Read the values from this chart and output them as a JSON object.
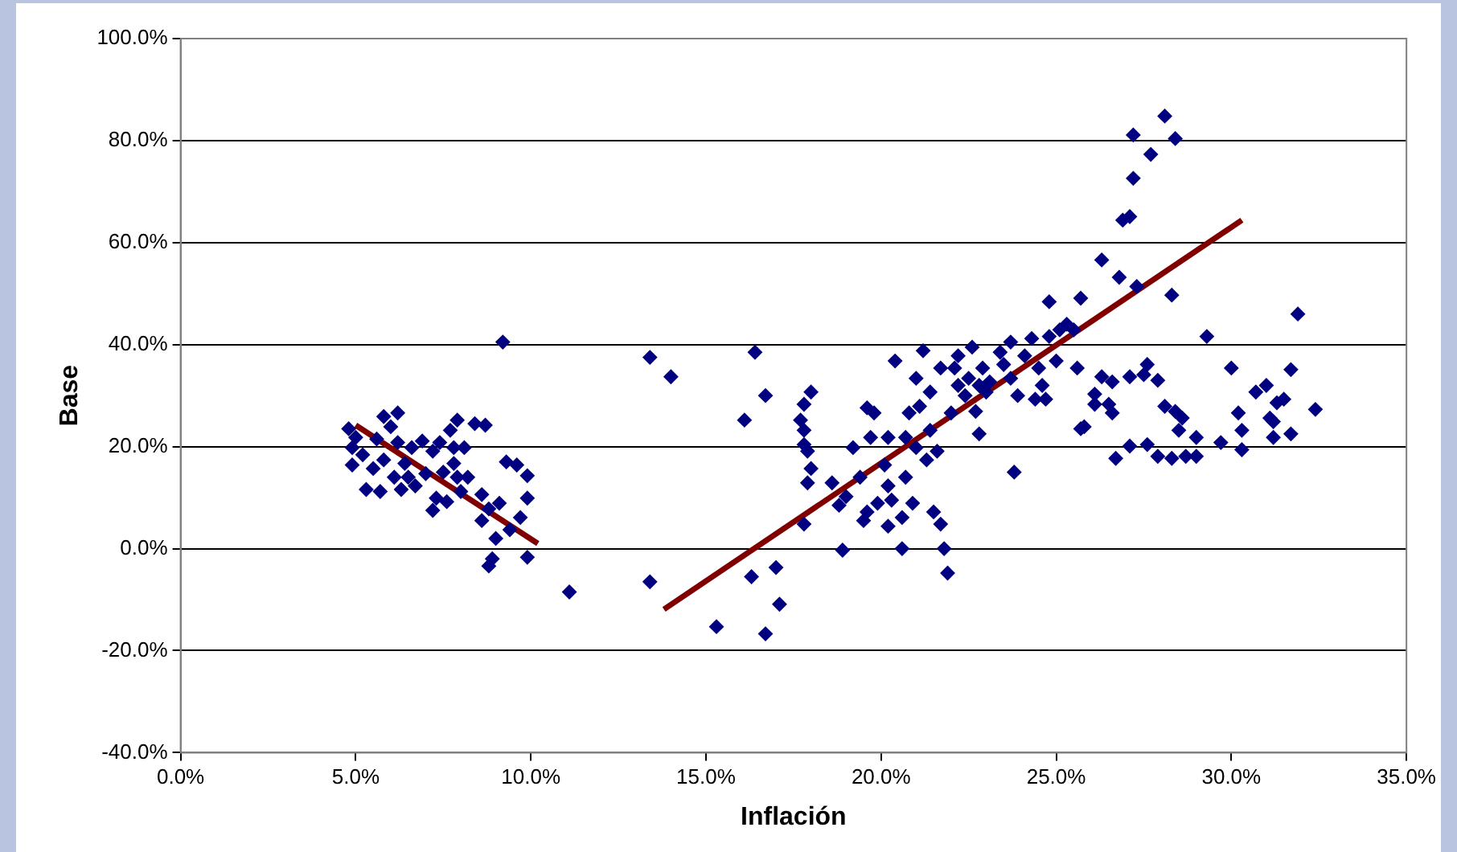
{
  "chart_data": {
    "type": "scatter",
    "xlabel": "Inflación",
    "ylabel": "Base",
    "xlim": [
      0,
      35
    ],
    "ylim": [
      -40,
      100
    ],
    "xticks": [
      {
        "value": 0,
        "label": "0.0%"
      },
      {
        "value": 5,
        "label": "5.0%"
      },
      {
        "value": 10,
        "label": "10.0%"
      },
      {
        "value": 15,
        "label": "15.0%"
      },
      {
        "value": 20,
        "label": "20.0%"
      },
      {
        "value": 25,
        "label": "25.0%"
      },
      {
        "value": 30,
        "label": "30.0%"
      },
      {
        "value": 35,
        "label": "35.0%"
      }
    ],
    "yticks": [
      {
        "value": -40,
        "label": "-40.0%"
      },
      {
        "value": -20,
        "label": "-20.0%"
      },
      {
        "value": 0,
        "label": "0.0%"
      },
      {
        "value": 20,
        "label": "20.0%"
      },
      {
        "value": 40,
        "label": "40.0%"
      },
      {
        "value": 60,
        "label": "60.0%"
      },
      {
        "value": 80,
        "label": "80.0%"
      },
      {
        "value": 100,
        "label": "100.0%"
      }
    ],
    "grid": "y",
    "legend": false,
    "series": [
      {
        "marker": "diamond",
        "color": "#000080",
        "x": [
          4.8,
          4.9,
          4.9,
          5.0,
          5.2,
          5.3,
          5.5,
          5.6,
          5.7,
          5.8,
          5.8,
          6.0,
          6.1,
          6.2,
          6.2,
          6.3,
          6.4,
          6.5,
          6.6,
          6.7,
          6.9,
          7.0,
          7.2,
          7.2,
          7.3,
          7.4,
          7.5,
          7.6,
          7.7,
          7.8,
          7.8,
          7.9,
          7.9,
          8.0,
          8.1,
          8.2,
          8.4,
          8.6,
          8.6,
          8.7,
          8.8,
          8.8,
          8.9,
          9.0,
          9.1,
          9.2,
          9.3,
          9.4,
          9.6,
          9.7,
          9.9,
          9.9,
          9.9,
          11.1,
          13.4,
          13.4,
          14.0,
          15.3,
          16.1,
          16.3,
          16.4,
          16.7,
          16.7,
          17.0,
          17.1,
          17.7,
          17.8,
          17.8,
          17.8,
          17.9,
          18.0,
          17.9,
          18.0,
          17.8,
          18.6,
          18.8,
          18.9,
          19.0,
          19.2,
          19.4,
          19.5,
          19.6,
          19.6,
          19.7,
          19.8,
          19.9,
          20.1,
          20.2,
          20.2,
          20.2,
          20.3,
          20.4,
          20.6,
          20.6,
          20.7,
          20.7,
          20.8,
          20.9,
          21.0,
          21.0,
          21.1,
          21.2,
          21.3,
          21.4,
          21.4,
          21.5,
          21.6,
          21.7,
          21.7,
          21.8,
          21.9,
          22.0,
          22.1,
          22.2,
          22.2,
          22.4,
          22.5,
          22.6,
          22.7,
          22.8,
          22.8,
          22.9,
          23.0,
          23.1,
          23.4,
          23.5,
          23.7,
          23.7,
          23.8,
          23.9,
          24.1,
          24.3,
          24.4,
          24.5,
          24.6,
          24.8,
          24.7,
          24.8,
          25.0,
          25.1,
          25.3,
          25.5,
          25.7,
          25.6,
          25.8,
          26.3,
          26.8,
          27.3,
          26.9,
          27.1,
          27.2,
          27.2,
          27.7,
          28.1,
          28.4,
          28.3,
          29.3,
          31.9,
          26.3,
          26.6,
          27.1,
          27.6,
          27.5,
          27.9,
          26.1,
          26.1,
          26.5,
          26.6,
          25.7,
          28.1,
          28.4,
          28.6,
          28.5,
          26.7,
          27.1,
          27.6,
          27.9,
          28.3,
          28.7,
          29.0,
          29.0,
          29.7,
          30.0,
          30.2,
          30.3,
          30.3,
          30.7,
          31.0,
          31.1,
          31.2,
          31.3,
          31.5,
          31.2,
          31.7,
          31.7,
          32.4
        ],
        "values": [
          23.5,
          19.8,
          16.4,
          21.8,
          18.4,
          11.6,
          15.7,
          21.5,
          11.2,
          25.9,
          17.4,
          23.9,
          14.0,
          26.6,
          20.8,
          11.6,
          16.7,
          14.0,
          19.8,
          12.3,
          21.1,
          14.7,
          19.1,
          7.5,
          9.9,
          20.8,
          15.0,
          9.2,
          23.2,
          19.8,
          16.7,
          14.0,
          25.2,
          11.2,
          19.8,
          14.0,
          24.5,
          10.6,
          5.5,
          24.2,
          7.8,
          -3.4,
          -2.0,
          2.0,
          8.9,
          40.5,
          17.0,
          3.7,
          16.4,
          6.1,
          9.9,
          14.3,
          -1.7,
          -8.5,
          -6.5,
          37.5,
          33.7,
          -15.3,
          25.2,
          -5.5,
          38.5,
          -16.7,
          30.0,
          -3.7,
          -10.9,
          25.2,
          28.3,
          23.2,
          20.4,
          19.1,
          30.7,
          12.9,
          15.7,
          4.8,
          12.9,
          8.5,
          -0.3,
          10.2,
          19.8,
          14.0,
          5.5,
          27.6,
          7.2,
          21.8,
          26.6,
          8.9,
          16.4,
          21.8,
          12.3,
          4.4,
          9.5,
          36.8,
          0.0,
          6.1,
          14.0,
          21.8,
          26.6,
          8.9,
          33.4,
          19.8,
          27.9,
          38.8,
          17.4,
          23.2,
          30.7,
          7.2,
          19.1,
          35.4,
          4.8,
          0.0,
          -4.8,
          26.6,
          35.4,
          32.0,
          37.8,
          30.0,
          33.4,
          39.5,
          26.9,
          32.0,
          22.5,
          35.4,
          30.7,
          32.7,
          38.5,
          36.1,
          33.4,
          40.5,
          15.0,
          30.0,
          37.8,
          41.2,
          29.3,
          35.4,
          32.0,
          41.6,
          29.3,
          48.4,
          36.8,
          42.9,
          44.0,
          42.9,
          49.1,
          35.4,
          23.9,
          56.6,
          53.2,
          51.4,
          64.4,
          65.1,
          72.6,
          81.1,
          77.3,
          84.8,
          80.4,
          49.7,
          41.6,
          46.0,
          33.7,
          32.7,
          33.7,
          36.1,
          34.1,
          33.0,
          30.3,
          28.3,
          28.3,
          26.6,
          23.5,
          27.9,
          26.9,
          25.6,
          23.2,
          17.7,
          20.1,
          20.4,
          18.1,
          17.7,
          18.1,
          21.8,
          18.1,
          20.8,
          35.4,
          26.6,
          23.2,
          19.4,
          30.7,
          32.0,
          25.6,
          24.9,
          28.6,
          29.3,
          21.8,
          22.5,
          35.1,
          27.3
        ]
      },
      {
        "type": "line",
        "marker": "none",
        "color": "#800000",
        "x": [
          5.0,
          10.2
        ],
        "values": [
          24.2,
          1.0
        ]
      },
      {
        "type": "line",
        "marker": "none",
        "color": "#800000",
        "x": [
          13.8,
          30.3
        ],
        "values": [
          -11.9,
          64.4
        ]
      }
    ]
  }
}
